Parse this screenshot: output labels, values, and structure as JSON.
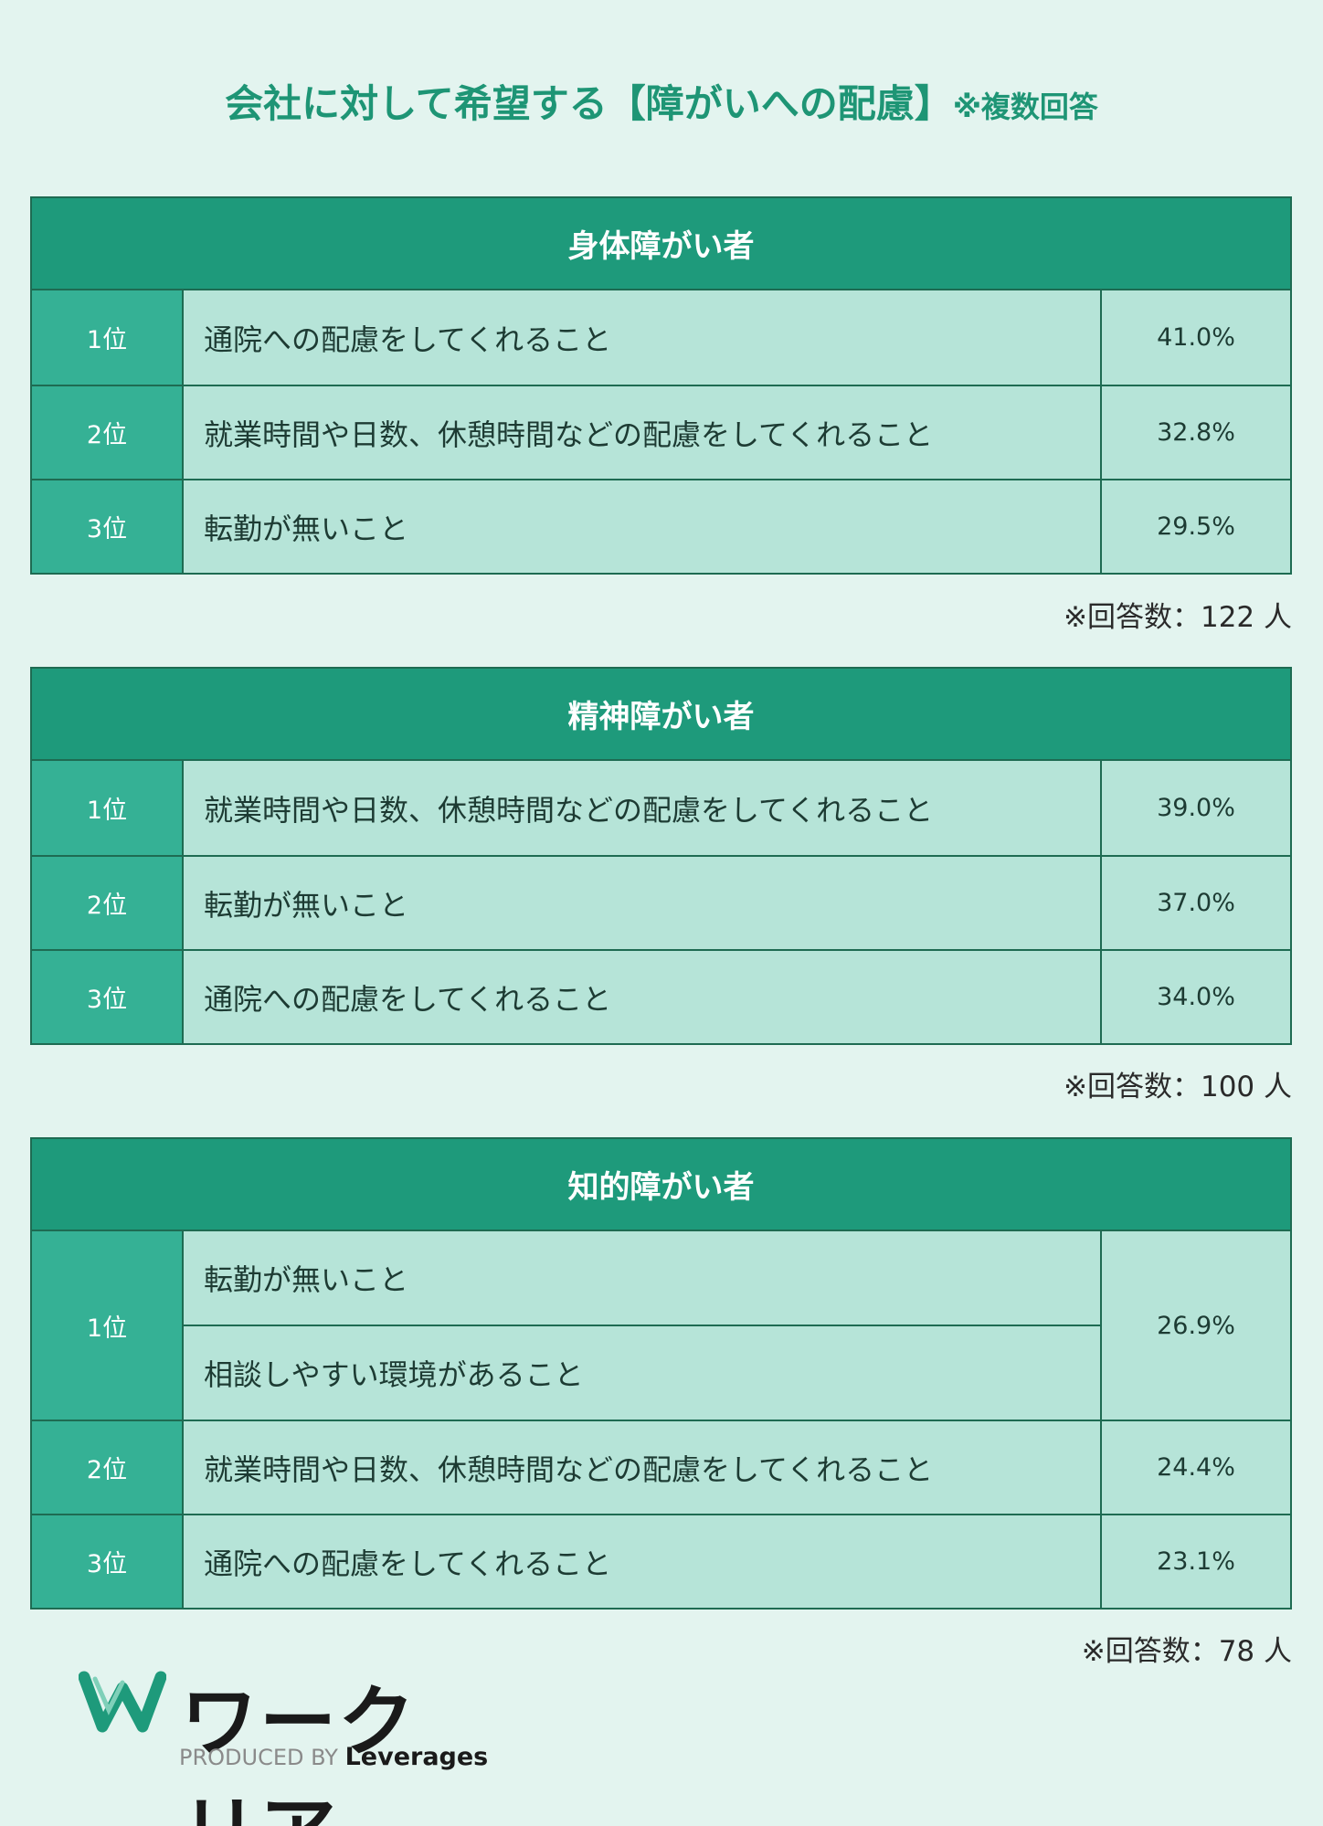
{
  "title": {
    "main": "会社に対して希望する【障がいへの配慮】",
    "sub": "※複数回答"
  },
  "chart_data": {
    "type": "table",
    "tables": [
      {
        "header": "身体障がい者",
        "rows": [
          {
            "rank": "1位",
            "items": [
              "通院への配慮をしてくれること"
            ],
            "value": "41.0%"
          },
          {
            "rank": "2位",
            "items": [
              "就業時間や日数、休憩時間などの配慮をしてくれること"
            ],
            "value": "32.8%"
          },
          {
            "rank": "3位",
            "items": [
              "転勤が無いこと"
            ],
            "value": "29.5%"
          }
        ],
        "note": "※回答数：122 人"
      },
      {
        "header": "精神障がい者",
        "rows": [
          {
            "rank": "1位",
            "items": [
              "就業時間や日数、休憩時間などの配慮をしてくれること"
            ],
            "value": "39.0%"
          },
          {
            "rank": "2位",
            "items": [
              "転勤が無いこと"
            ],
            "value": "37.0%"
          },
          {
            "rank": "3位",
            "items": [
              "通院への配慮をしてくれること"
            ],
            "value": "34.0%"
          }
        ],
        "note": "※回答数：100 人"
      },
      {
        "header": "知的障がい者",
        "rows": [
          {
            "rank": "1位",
            "items": [
              "転勤が無いこと",
              "相談しやすい環境があること"
            ],
            "value": "26.9%"
          },
          {
            "rank": "2位",
            "items": [
              "就業時間や日数、休憩時間などの配慮をしてくれること"
            ],
            "value": "24.4%"
          },
          {
            "rank": "3位",
            "items": [
              "通院への配慮をしてくれること"
            ],
            "value": "23.1%"
          }
        ],
        "note": "※回答数：78 人"
      }
    ]
  },
  "logo": {
    "name": "ワークリア",
    "produced_by": "PRODUCED BY",
    "company": "Leverages"
  },
  "colors": {
    "header": "#1e9a7b",
    "rank": "#35b195",
    "cell": "#b6e4d8",
    "title": "#1e9575",
    "background": "#e3f4ef"
  }
}
